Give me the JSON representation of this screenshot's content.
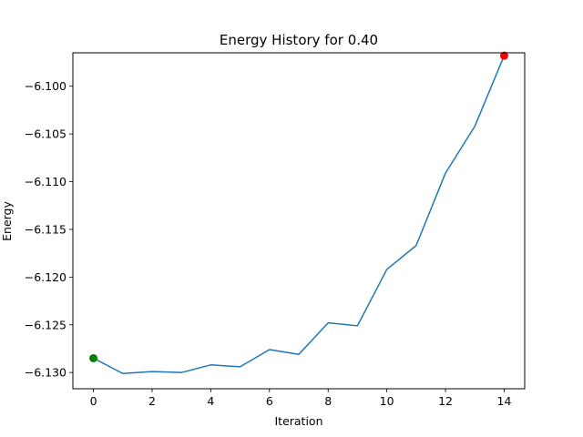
{
  "chart_data": {
    "type": "line",
    "title": "Energy History for 0.40",
    "xlabel": "Iteration",
    "ylabel": "Energy",
    "xlim": [
      -0.7,
      14.7
    ],
    "ylim": [
      -6.1317,
      -6.0965
    ],
    "xticks": [
      0,
      2,
      4,
      6,
      8,
      10,
      12,
      14
    ],
    "xtick_labels": [
      "0",
      "2",
      "4",
      "6",
      "8",
      "10",
      "12",
      "14"
    ],
    "yticks": [
      -6.13,
      -6.125,
      -6.12,
      -6.115,
      -6.11,
      -6.105,
      -6.1
    ],
    "ytick_labels": [
      "−6.130",
      "−6.125",
      "−6.120",
      "−6.115",
      "−6.110",
      "−6.105",
      "−6.100"
    ],
    "grid": false,
    "series": [
      {
        "color": "#1f77b4",
        "x": [
          0,
          1,
          2,
          3,
          4,
          5,
          6,
          7,
          8,
          9,
          10,
          11,
          12,
          13,
          14
        ],
        "y": [
          -6.1285,
          -6.1301,
          -6.1299,
          -6.13,
          -6.1292,
          -6.1294,
          -6.1276,
          -6.1281,
          -6.1248,
          -6.1251,
          -6.1192,
          -6.1167,
          -6.1091,
          -6.1042,
          -6.0968
        ]
      }
    ],
    "markers": [
      {
        "x": 0,
        "y": -6.1285,
        "color": "#008000"
      },
      {
        "x": 14,
        "y": -6.0968,
        "color": "#ff0000"
      }
    ]
  }
}
